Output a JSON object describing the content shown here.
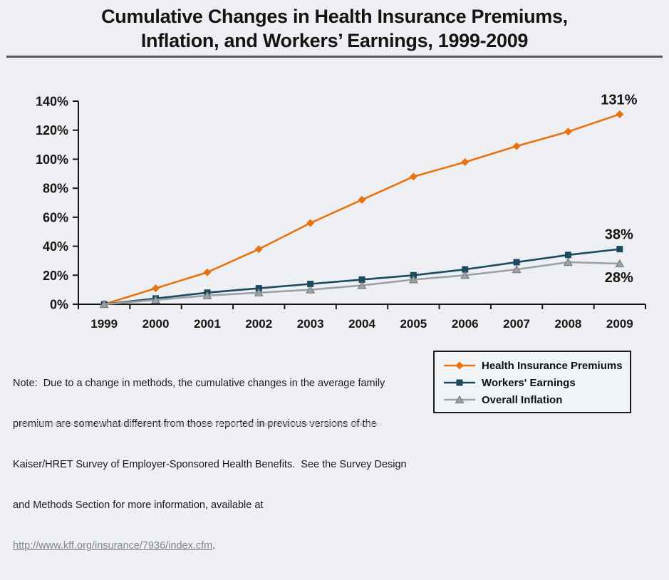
{
  "title": {
    "line1": "Cumulative Changes in Health Insurance Premiums,",
    "line2": "Inflation, and Workers’ Earnings, 1999-2009"
  },
  "chart_data": {
    "type": "line",
    "x": [
      1999,
      2000,
      2001,
      2002,
      2003,
      2004,
      2005,
      2006,
      2007,
      2008,
      2009
    ],
    "series": [
      {
        "name": "Health Insurance Premiums",
        "marker": "diamond",
        "color": "#E8720D",
        "values": [
          0,
          11,
          22,
          38,
          56,
          72,
          88,
          98,
          109,
          119,
          131
        ],
        "end_label": "131%",
        "end_label_position": "above"
      },
      {
        "name": "Workers' Earnings",
        "marker": "square",
        "color": "#1B4A5F",
        "values": [
          0,
          4,
          8,
          11,
          14,
          17,
          20,
          24,
          29,
          34,
          38
        ],
        "end_label": "38%",
        "end_label_position": "above"
      },
      {
        "name": "Overall Inflation",
        "marker": "triangle",
        "color": "#9CA1A6",
        "outline": "#73777B",
        "values": [
          0,
          3,
          6,
          8,
          10,
          13,
          17,
          20,
          24,
          29,
          28
        ],
        "end_label": "28%",
        "end_label_position": "below"
      }
    ],
    "y_ticks": [
      "0%",
      "20%",
      "40%",
      "60%",
      "80%",
      "100%",
      "120%",
      "140%"
    ],
    "ylim": [
      0,
      140
    ],
    "grid": false,
    "legend_position": "bottom-right",
    "axis_color": "#161616"
  },
  "note": {
    "lines": [
      "Note:  Due to a change in methods, the cumulative changes in the average family",
      "premium are somewhat different from those reported in previous versions of the",
      "Kaiser/HRET Survey of Employer-Sponsored Health Benefits.  See the Survey Design",
      "and Methods Section for more information, available at"
    ],
    "link": "http://www.kff.org/insurance/7936/index.cfm",
    "link_suffix": "."
  }
}
